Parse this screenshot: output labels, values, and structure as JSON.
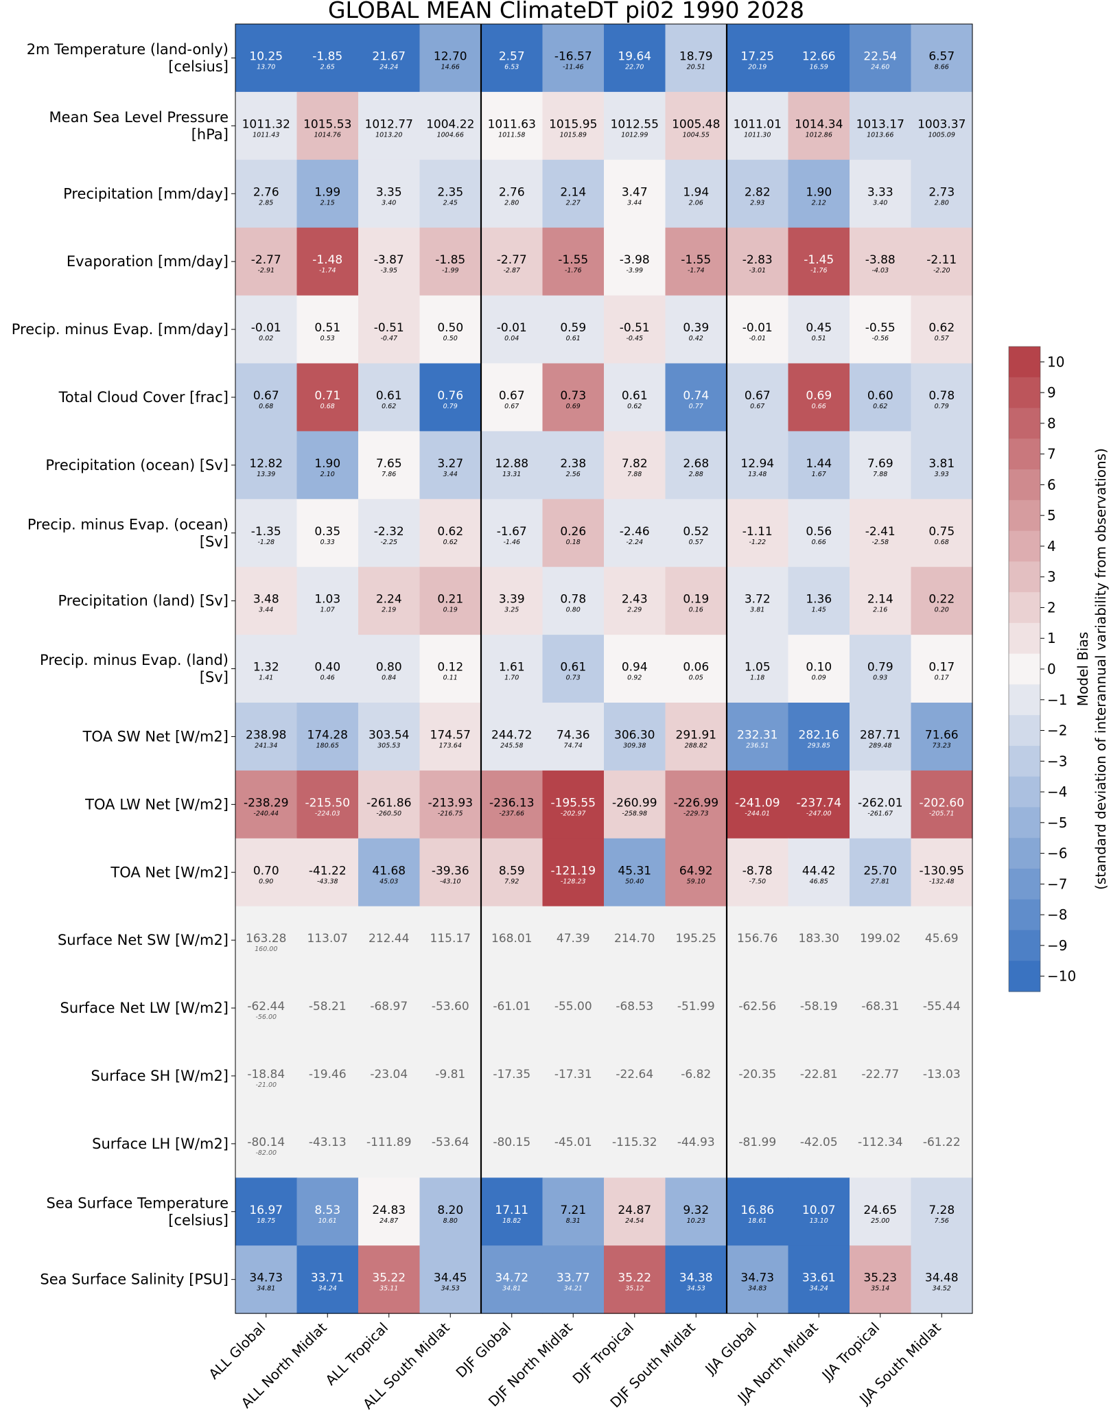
{
  "chart_data": {
    "type": "heatmap",
    "title": "GLOBAL MEAN ClimateDT pi02 1990 2028",
    "columns": [
      "ALL Global",
      "ALL North Midlat",
      "ALL Tropical",
      "ALL South Midlat",
      "DJF Global",
      "DJF North Midlat",
      "DJF Tropical",
      "DJF South Midlat",
      "JJA Global",
      "JJA North Midlat",
      "JJA Tropical",
      "JJA South Midlat"
    ],
    "rows": [
      {
        "label": [
          "2m Temperature (land-only)",
          "[celsius]"
        ],
        "values": [
          "10.25",
          "-1.85",
          "21.67",
          "12.70",
          "2.57",
          "-16.57",
          "19.64",
          "18.79",
          "17.25",
          "12.66",
          "22.54",
          "6.57"
        ],
        "obs": [
          "13.70",
          "2.65",
          "24.24",
          "14.66",
          "6.53",
          "-11.46",
          "22.70",
          "20.51",
          "20.19",
          "16.59",
          "24.60",
          "8.66"
        ],
        "bias": [
          -10,
          -10,
          -10,
          -6,
          -10,
          -6,
          -10,
          -3,
          -10,
          -10,
          -8,
          -5
        ]
      },
      {
        "label": [
          "Mean Sea Level Pressure",
          "[hPa]"
        ],
        "values": [
          "1011.32",
          "1015.53",
          "1012.77",
          "1004.22",
          "1011.63",
          "1015.95",
          "1012.55",
          "1005.48",
          "1011.01",
          "1014.34",
          "1013.17",
          "1003.37"
        ],
        "obs": [
          "1011.43",
          "1014.76",
          "1013.20",
          "1004.66",
          "1011.58",
          "1015.89",
          "1012.99",
          "1004.55",
          "1011.30",
          "1012.86",
          "1013.66",
          "1005.09"
        ],
        "bias": [
          -1,
          3,
          -1,
          -1,
          0,
          1,
          -1,
          2,
          -1,
          3,
          -2,
          -2
        ]
      },
      {
        "label": [
          "Precipitation [mm/day]"
        ],
        "values": [
          "2.76",
          "1.99",
          "3.35",
          "2.35",
          "2.76",
          "2.14",
          "3.47",
          "1.94",
          "2.82",
          "1.90",
          "3.33",
          "2.73"
        ],
        "obs": [
          "2.85",
          "2.15",
          "3.40",
          "2.45",
          "2.80",
          "2.27",
          "3.44",
          "2.06",
          "2.93",
          "2.12",
          "3.40",
          "2.80"
        ],
        "bias": [
          -2,
          -5,
          -1,
          -2,
          -1,
          -3,
          0,
          -2,
          -3,
          -5,
          -1,
          -2
        ]
      },
      {
        "label": [
          "Evaporation [mm/day]"
        ],
        "values": [
          "-2.77",
          "-1.48",
          "-3.87",
          "-1.85",
          "-2.77",
          "-1.55",
          "-3.98",
          "-1.55",
          "-2.83",
          "-1.45",
          "-3.88",
          "-2.11"
        ],
        "obs": [
          "-2.91",
          "-1.74",
          "-3.95",
          "-1.99",
          "-2.87",
          "-1.76",
          "-3.99",
          "-1.74",
          "-3.01",
          "-1.76",
          "-4.03",
          "-2.20"
        ],
        "bias": [
          3,
          9,
          1,
          3,
          2,
          6,
          0,
          5,
          3,
          9,
          2,
          2
        ]
      },
      {
        "label": [
          "Precip. minus Evap. [mm/day]"
        ],
        "values": [
          "-0.01",
          "0.51",
          "-0.51",
          "0.50",
          "-0.01",
          "0.59",
          "-0.51",
          "0.39",
          "-0.01",
          "0.45",
          "-0.55",
          "0.62"
        ],
        "obs": [
          "0.02",
          "0.53",
          "-0.47",
          "0.50",
          "0.04",
          "0.61",
          "-0.45",
          "0.42",
          "-0.01",
          "0.51",
          "-0.56",
          "0.57"
        ],
        "bias": [
          -1,
          0,
          1,
          0,
          -1,
          -1,
          1,
          -1,
          0,
          -1,
          0,
          1
        ]
      },
      {
        "label": [
          "Total Cloud Cover [frac]"
        ],
        "values": [
          "0.67",
          "0.71",
          "0.61",
          "0.76",
          "0.67",
          "0.73",
          "0.61",
          "0.74",
          "0.67",
          "0.69",
          "0.60",
          "0.78"
        ],
        "obs": [
          "0.68",
          "0.68",
          "0.62",
          "0.79",
          "0.67",
          "0.69",
          "0.62",
          "0.77",
          "0.67",
          "0.66",
          "0.62",
          "0.79"
        ],
        "bias": [
          -3,
          9,
          -2,
          -10,
          0,
          6,
          -1,
          -8,
          -2,
          9,
          -3,
          -2
        ]
      },
      {
        "label": [
          "Precipitation (ocean) [Sv]"
        ],
        "values": [
          "12.82",
          "1.90",
          "7.65",
          "3.27",
          "12.88",
          "2.38",
          "7.82",
          "2.68",
          "12.94",
          "1.44",
          "7.69",
          "3.81"
        ],
        "obs": [
          "13.39",
          "2.10",
          "7.86",
          "3.44",
          "13.31",
          "2.56",
          "7.88",
          "2.88",
          "13.48",
          "1.67",
          "7.88",
          "3.93"
        ],
        "bias": [
          -3,
          -5,
          0,
          -3,
          -2,
          -2,
          1,
          -2,
          -2,
          -3,
          -1,
          -2
        ]
      },
      {
        "label": [
          "Precip. minus Evap. (ocean)",
          "[Sv]"
        ],
        "values": [
          "-1.35",
          "0.35",
          "-2.32",
          "0.62",
          "-1.67",
          "0.26",
          "-2.46",
          "0.52",
          "-1.11",
          "0.56",
          "-2.41",
          "0.75"
        ],
        "obs": [
          "-1.28",
          "0.33",
          "-2.25",
          "0.62",
          "-1.46",
          "0.18",
          "-2.24",
          "0.57",
          "-1.22",
          "0.66",
          "-2.58",
          "0.68"
        ],
        "bias": [
          -1,
          0,
          -1,
          1,
          -1,
          3,
          -1,
          -1,
          1,
          -1,
          1,
          1
        ]
      },
      {
        "label": [
          "Precipitation (land) [Sv]"
        ],
        "values": [
          "3.48",
          "1.03",
          "2.24",
          "0.21",
          "3.39",
          "0.78",
          "2.43",
          "0.19",
          "3.72",
          "1.36",
          "2.14",
          "0.22"
        ],
        "obs": [
          "3.44",
          "1.07",
          "2.19",
          "0.19",
          "3.25",
          "0.80",
          "2.29",
          "0.16",
          "3.81",
          "1.45",
          "2.16",
          "0.20"
        ],
        "bias": [
          1,
          -1,
          2,
          3,
          1,
          -1,
          1,
          2,
          -1,
          -2,
          1,
          3
        ]
      },
      {
        "label": [
          "Precip. minus Evap. (land)",
          "[Sv]"
        ],
        "values": [
          "1.32",
          "0.40",
          "0.80",
          "0.12",
          "1.61",
          "0.61",
          "0.94",
          "0.06",
          "1.05",
          "0.10",
          "0.79",
          "0.17"
        ],
        "obs": [
          "1.41",
          "0.46",
          "0.84",
          "0.11",
          "1.70",
          "0.73",
          "0.92",
          "0.05",
          "1.18",
          "0.09",
          "0.93",
          "0.17"
        ],
        "bias": [
          -1,
          -1,
          -1,
          0,
          -1,
          -3,
          0,
          0,
          -1,
          0,
          -2,
          0
        ]
      },
      {
        "label": [
          "TOA SW Net [W/m2]"
        ],
        "values": [
          "238.98",
          "174.28",
          "303.54",
          "174.57",
          "244.72",
          "74.36",
          "306.30",
          "291.91",
          "232.31",
          "282.16",
          "287.71",
          "71.66"
        ],
        "obs": [
          "241.34",
          "180.65",
          "305.53",
          "173.64",
          "245.58",
          "74.74",
          "309.38",
          "288.82",
          "236.51",
          "293.85",
          "289.48",
          "73.23"
        ],
        "bias": [
          -3,
          -4,
          -2,
          1,
          -1,
          -1,
          -3,
          2,
          -7,
          -9,
          -2,
          -6
        ]
      },
      {
        "label": [
          "TOA LW Net [W/m2]"
        ],
        "values": [
          "-238.29",
          "-215.50",
          "-261.86",
          "-213.93",
          "-236.13",
          "-195.55",
          "-260.99",
          "-226.99",
          "-241.09",
          "-237.74",
          "-262.01",
          "-202.60"
        ],
        "obs": [
          "-240.44",
          "-224.03",
          "-260.50",
          "-216.75",
          "-237.66",
          "-202.97",
          "-258.98",
          "-229.73",
          "-244.01",
          "-247.00",
          "-261.67",
          "-205.71"
        ],
        "bias": [
          6,
          8,
          2,
          4,
          6,
          10,
          2,
          6,
          10,
          10,
          -1,
          8
        ]
      },
      {
        "label": [
          "TOA Net [W/m2]"
        ],
        "values": [
          "0.70",
          "-41.22",
          "41.68",
          "-39.36",
          "8.59",
          "-121.19",
          "45.31",
          "64.92",
          "-8.78",
          "44.42",
          "25.70",
          "-130.95"
        ],
        "obs": [
          "0.90",
          "-43.38",
          "45.03",
          "-43.10",
          "7.92",
          "-128.23",
          "50.40",
          "59.10",
          "-7.50",
          "46.85",
          "27.81",
          "-132.48"
        ],
        "bias": [
          1,
          1,
          -5,
          2,
          2,
          10,
          -6,
          6,
          1,
          -1,
          -3,
          1
        ]
      },
      {
        "label": [
          "Surface Net SW [W/m2]"
        ],
        "values": [
          "163.28",
          "113.07",
          "212.44",
          "115.17",
          "168.01",
          "47.39",
          "214.70",
          "195.25",
          "156.76",
          "183.30",
          "199.02",
          "45.69"
        ],
        "obs": [
          "160.00",
          "",
          "",
          "",
          "",
          "",
          "",
          "",
          "",
          "",
          "",
          ""
        ],
        "bias": [
          null,
          null,
          null,
          null,
          null,
          null,
          null,
          null,
          null,
          null,
          null,
          null
        ]
      },
      {
        "label": [
          "Surface Net LW [W/m2]"
        ],
        "values": [
          "-62.44",
          "-58.21",
          "-68.97",
          "-53.60",
          "-61.01",
          "-55.00",
          "-68.53",
          "-51.99",
          "-62.56",
          "-58.19",
          "-68.31",
          "-55.44"
        ],
        "obs": [
          "-56.00",
          "",
          "",
          "",
          "",
          "",
          "",
          "",
          "",
          "",
          "",
          ""
        ],
        "bias": [
          null,
          null,
          null,
          null,
          null,
          null,
          null,
          null,
          null,
          null,
          null,
          null
        ]
      },
      {
        "label": [
          "Surface SH [W/m2]"
        ],
        "values": [
          "-18.84",
          "-19.46",
          "-23.04",
          "-9.81",
          "-17.35",
          "-17.31",
          "-22.64",
          "-6.82",
          "-20.35",
          "-22.81",
          "-22.77",
          "-13.03"
        ],
        "obs": [
          "-21.00",
          "",
          "",
          "",
          "",
          "",
          "",
          "",
          "",
          "",
          "",
          ""
        ],
        "bias": [
          null,
          null,
          null,
          null,
          null,
          null,
          null,
          null,
          null,
          null,
          null,
          null
        ]
      },
      {
        "label": [
          "Surface LH [W/m2]"
        ],
        "values": [
          "-80.14",
          "-43.13",
          "-111.89",
          "-53.64",
          "-80.15",
          "-45.01",
          "-115.32",
          "-44.93",
          "-81.99",
          "-42.05",
          "-112.34",
          "-61.22"
        ],
        "obs": [
          "-82.00",
          "",
          "",
          "",
          "",
          "",
          "",
          "",
          "",
          "",
          "",
          ""
        ],
        "bias": [
          null,
          null,
          null,
          null,
          null,
          null,
          null,
          null,
          null,
          null,
          null,
          null
        ]
      },
      {
        "label": [
          "Sea Surface Temperature",
          "[celsius]"
        ],
        "values": [
          "16.97",
          "8.53",
          "24.83",
          "8.20",
          "17.11",
          "7.21",
          "24.87",
          "9.32",
          "16.86",
          "10.07",
          "24.65",
          "7.28"
        ],
        "obs": [
          "18.75",
          "10.61",
          "24.87",
          "8.80",
          "18.82",
          "8.31",
          "24.54",
          "10.23",
          "18.61",
          "13.10",
          "25.00",
          "7.56"
        ],
        "bias": [
          -10,
          -7,
          0,
          -4,
          -10,
          -6,
          2,
          -5,
          -10,
          -10,
          -1,
          -2
        ]
      },
      {
        "label": [
          "Sea Surface Salinity [PSU]"
        ],
        "values": [
          "34.73",
          "33.71",
          "35.22",
          "34.45",
          "34.72",
          "33.77",
          "35.22",
          "34.38",
          "34.73",
          "33.61",
          "35.23",
          "34.48"
        ],
        "obs": [
          "34.81",
          "34.24",
          "35.11",
          "34.53",
          "34.81",
          "34.21",
          "35.12",
          "34.53",
          "34.83",
          "34.24",
          "35.14",
          "34.52"
        ],
        "bias": [
          -5,
          -10,
          7,
          -4,
          -7,
          -7,
          8,
          -10,
          -6,
          -10,
          4,
          -2
        ]
      }
    ],
    "colorbar": {
      "label_line1": "Model Bias",
      "label_line2": "(standard deviation of interannual variability from observations)",
      "ticks": [
        "10",
        "9",
        "8",
        "7",
        "6",
        "5",
        "4",
        "3",
        "2",
        "1",
        "0",
        "−1",
        "−2",
        "−3",
        "−4",
        "−5",
        "−6",
        "−7",
        "−8",
        "−9",
        "−10"
      ],
      "range": [
        -10,
        10
      ]
    },
    "no_data_color": "#f2f2f2",
    "palette": {
      "blue": "#3a73c1",
      "white": "#f7f4f4",
      "red": "#b5434a"
    }
  }
}
